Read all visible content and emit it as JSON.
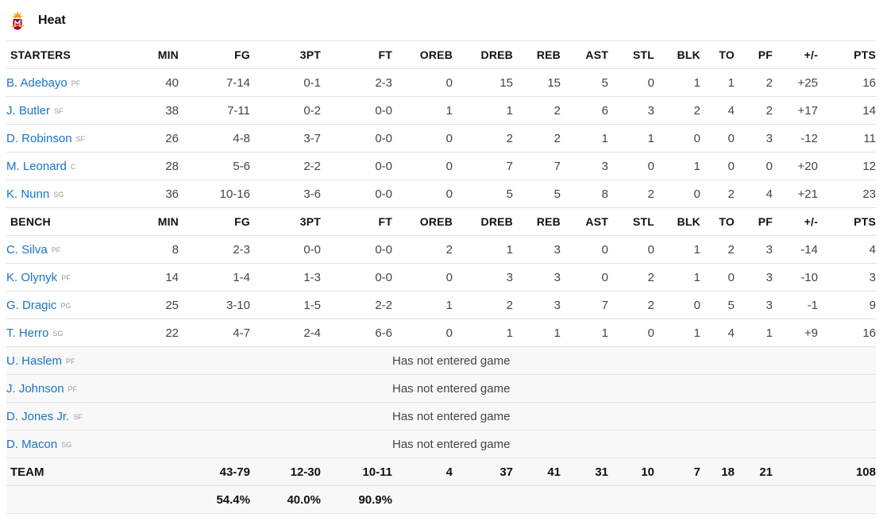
{
  "team": {
    "name": "Heat"
  },
  "columns": [
    "MIN",
    "FG",
    "3PT",
    "FT",
    "OREB",
    "DREB",
    "REB",
    "AST",
    "STL",
    "BLK",
    "TO",
    "PF",
    "+/-",
    "PTS"
  ],
  "starters_label": "STARTERS",
  "bench_label": "BENCH",
  "starters": [
    {
      "name": "B. Adebayo",
      "pos": "PF",
      "stats": [
        "40",
        "7-14",
        "0-1",
        "2-3",
        "0",
        "15",
        "15",
        "5",
        "0",
        "1",
        "1",
        "2",
        "+25",
        "16"
      ]
    },
    {
      "name": "J. Butler",
      "pos": "SF",
      "stats": [
        "38",
        "7-11",
        "0-2",
        "0-0",
        "1",
        "1",
        "2",
        "6",
        "3",
        "2",
        "4",
        "2",
        "+17",
        "14"
      ]
    },
    {
      "name": "D. Robinson",
      "pos": "SF",
      "stats": [
        "26",
        "4-8",
        "3-7",
        "0-0",
        "0",
        "2",
        "2",
        "1",
        "1",
        "0",
        "0",
        "3",
        "-12",
        "11"
      ]
    },
    {
      "name": "M. Leonard",
      "pos": "C",
      "stats": [
        "28",
        "5-6",
        "2-2",
        "0-0",
        "0",
        "7",
        "7",
        "3",
        "0",
        "1",
        "0",
        "0",
        "+20",
        "12"
      ]
    },
    {
      "name": "K. Nunn",
      "pos": "SG",
      "stats": [
        "36",
        "10-16",
        "3-6",
        "0-0",
        "0",
        "5",
        "5",
        "8",
        "2",
        "0",
        "2",
        "4",
        "+21",
        "23"
      ]
    }
  ],
  "bench": [
    {
      "name": "C. Silva",
      "pos": "PF",
      "stats": [
        "8",
        "2-3",
        "0-0",
        "0-0",
        "2",
        "1",
        "3",
        "0",
        "0",
        "1",
        "2",
        "3",
        "-14",
        "4"
      ]
    },
    {
      "name": "K. Olynyk",
      "pos": "PF",
      "stats": [
        "14",
        "1-4",
        "1-3",
        "0-0",
        "0",
        "3",
        "3",
        "0",
        "2",
        "1",
        "0",
        "3",
        "-10",
        "3"
      ]
    },
    {
      "name": "G. Dragic",
      "pos": "PG",
      "stats": [
        "25",
        "3-10",
        "1-5",
        "2-2",
        "1",
        "2",
        "3",
        "7",
        "2",
        "0",
        "5",
        "3",
        "-1",
        "9"
      ]
    },
    {
      "name": "T. Herro",
      "pos": "SG",
      "stats": [
        "22",
        "4-7",
        "2-4",
        "6-6",
        "0",
        "1",
        "1",
        "1",
        "0",
        "1",
        "4",
        "1",
        "+9",
        "16"
      ]
    }
  ],
  "dnp": [
    {
      "name": "U. Haslem",
      "pos": "PF",
      "note": "Has not entered game"
    },
    {
      "name": "J. Johnson",
      "pos": "PF",
      "note": "Has not entered game"
    },
    {
      "name": "D. Jones Jr.",
      "pos": "SF",
      "note": "Has not entered game"
    },
    {
      "name": "D. Macon",
      "pos": "SG",
      "note": "Has not entered game"
    }
  ],
  "totals": {
    "label": "TEAM",
    "stats": [
      "",
      "43-79",
      "12-30",
      "10-11",
      "4",
      "37",
      "41",
      "31",
      "10",
      "7",
      "18",
      "21",
      "",
      "108"
    ]
  },
  "percentages": {
    "fg": "54.4%",
    "three": "40.0%",
    "ft": "90.9%"
  }
}
